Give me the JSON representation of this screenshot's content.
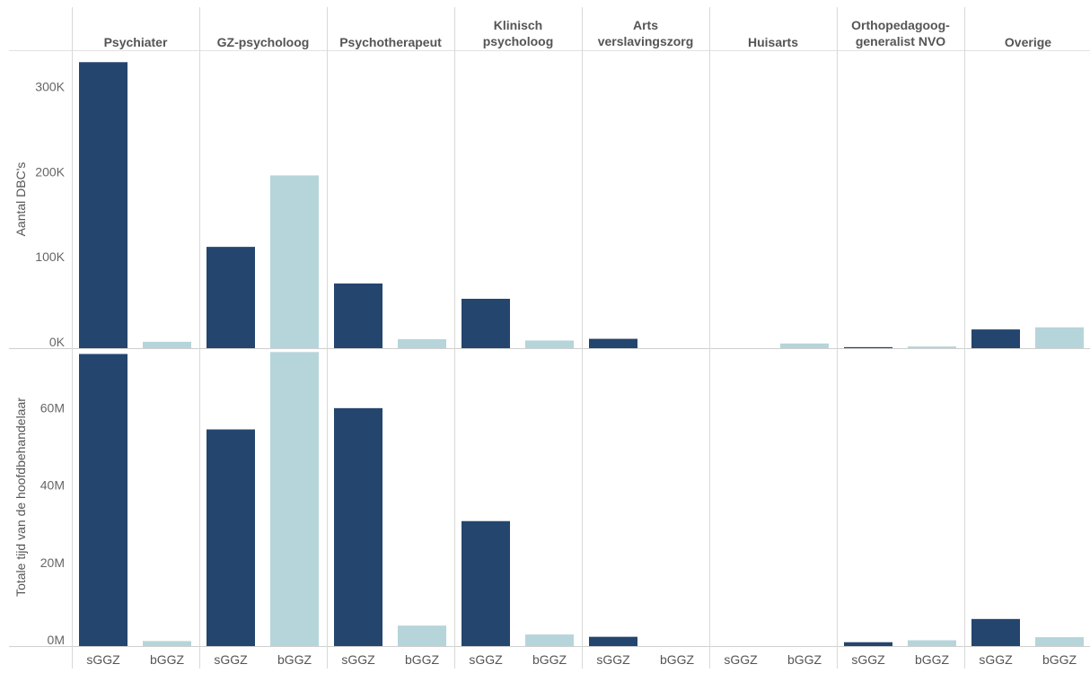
{
  "chart_data": {
    "type": "bar",
    "columns": [
      [
        "Psychiater"
      ],
      [
        "GZ-psycholoog"
      ],
      [
        "Psychotherapeut"
      ],
      [
        "Klinisch",
        "psycholoog"
      ],
      [
        "Arts",
        "verslavingszorg"
      ],
      [
        "Huisarts"
      ],
      [
        "Orthopedagoog-",
        "generalist NVO"
      ],
      [
        "Overige"
      ]
    ],
    "categories": [
      "sGGZ",
      "bGGZ"
    ],
    "colors": {
      "sGGZ": "#24456e",
      "bGGZ": "#b5d5da"
    },
    "panels": [
      {
        "ylabel": "Aantal DBC's",
        "ylim": [
          0,
          350000
        ],
        "ticks": [
          0,
          100000,
          200000,
          300000
        ],
        "tick_labels": [
          "0K",
          "100K",
          "200K",
          "300K"
        ],
        "values": [
          [
            336000,
            7500
          ],
          [
            119000,
            203000
          ],
          [
            76000,
            10500
          ],
          [
            58000,
            9000
          ],
          [
            11000,
            0
          ],
          [
            0,
            5500
          ],
          [
            1200,
            2000
          ],
          [
            22000,
            24500
          ]
        ]
      },
      {
        "ylabel": "Totale tijd van de hoofdbehandelaar",
        "ylim": [
          0,
          77000000
        ],
        "ticks": [
          0,
          20000000,
          40000000,
          60000000
        ],
        "tick_labels": [
          "0M",
          "20M",
          "40M",
          "60M"
        ],
        "values": [
          [
            75500000,
            1300000
          ],
          [
            56000000,
            76000000
          ],
          [
            61500000,
            5300000
          ],
          [
            32300000,
            3000000
          ],
          [
            2400000,
            0
          ],
          [
            0,
            0
          ],
          [
            1000000,
            1500000
          ],
          [
            7000000,
            2300000
          ]
        ]
      }
    ]
  }
}
